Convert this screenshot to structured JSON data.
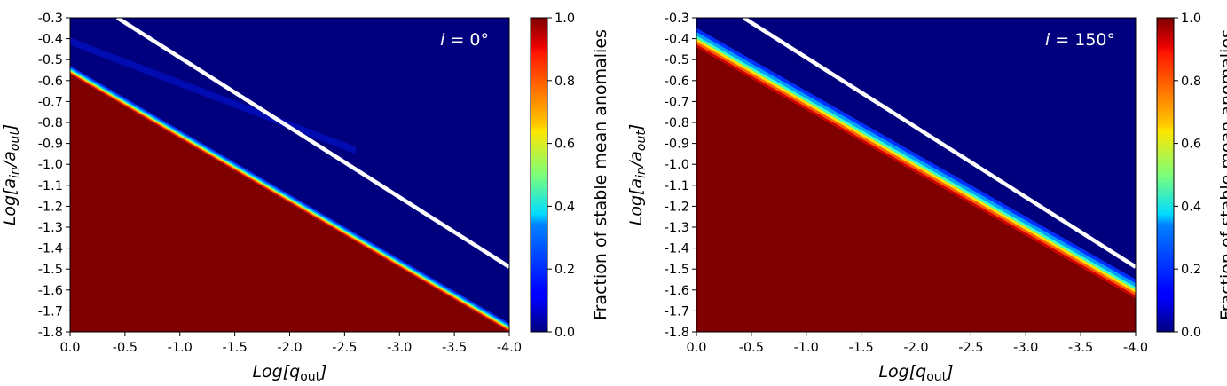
{
  "chart_data": [
    {
      "type": "heatmap",
      "panel_label": "i = 0°",
      "panel_var": "i",
      "panel_value": "0°",
      "xlabel_prefix": "Log[",
      "xlabel_var": "q",
      "xlabel_sub": "out",
      "xlabel_suffix": "]",
      "ylabel_prefix": "Log[",
      "ylabel_a1": "a",
      "ylabel_sub1": "in",
      "ylabel_mid": "/",
      "ylabel_a2": "a",
      "ylabel_sub2": "out",
      "ylabel_suffix": "]",
      "xlim": [
        0.0,
        -4.0
      ],
      "ylim": [
        -1.8,
        -0.3
      ],
      "x_ticks": [
        "0.0",
        "-0.5",
        "-1.0",
        "-1.5",
        "-2.0",
        "-2.5",
        "-3.0",
        "-3.5",
        "-4.0"
      ],
      "y_ticks": [
        "-0.3",
        "-0.4",
        "-0.5",
        "-0.6",
        "-0.7",
        "-0.8",
        "-0.9",
        "-1.0",
        "-1.1",
        "-1.2",
        "-1.3",
        "-1.4",
        "-1.5",
        "-1.6",
        "-1.7",
        "-1.8"
      ],
      "stability_boundary": [
        [
          0.0,
          -0.57
        ],
        [
          -4.0,
          -1.8
        ]
      ],
      "boundary_width": 0.04,
      "faint_band": [
        [
          0.0,
          -0.41
        ],
        [
          -0.3,
          -0.47
        ]
      ],
      "white_line": [
        [
          -0.43,
          -0.3
        ],
        [
          -4.0,
          -1.49
        ]
      ],
      "region_below_value": 1.0,
      "region_above_value": 0.0
    },
    {
      "type": "heatmap",
      "panel_label": "i = 150°",
      "panel_var": "i",
      "panel_value": "150°",
      "xlabel_prefix": "Log[",
      "xlabel_var": "q",
      "xlabel_sub": "out",
      "xlabel_suffix": "]",
      "ylabel_prefix": "Log[",
      "ylabel_a1": "a",
      "ylabel_sub1": "in",
      "ylabel_mid": "/",
      "ylabel_a2": "a",
      "ylabel_sub2": "out",
      "ylabel_suffix": "]",
      "xlim": [
        0.0,
        -4.0
      ],
      "ylim": [
        -1.8,
        -0.3
      ],
      "x_ticks": [
        "0.0",
        "-0.5",
        "-1.0",
        "-1.5",
        "-2.0",
        "-2.5",
        "-3.0",
        "-3.5",
        "-4.0"
      ],
      "y_ticks": [
        "-0.3",
        "-0.4",
        "-0.5",
        "-0.6",
        "-0.7",
        "-0.8",
        "-0.9",
        "-1.0",
        "-1.1",
        "-1.2",
        "-1.3",
        "-1.4",
        "-1.5",
        "-1.6",
        "-1.7",
        "-1.8"
      ],
      "stability_boundary": [
        [
          0.0,
          -0.44
        ],
        [
          -4.0,
          -1.64
        ]
      ],
      "boundary_width": 0.09,
      "white_line": [
        [
          -0.43,
          -0.3
        ],
        [
          -4.0,
          -1.49
        ]
      ],
      "region_below_value": 1.0,
      "region_above_value": 0.0
    }
  ],
  "colorbars": [
    {
      "label": "Fraction of stable mean anomalies",
      "range": [
        0.0,
        1.0
      ],
      "ticks": [
        "0.0",
        "0.2",
        "0.4",
        "0.6",
        "0.8",
        "1.0"
      ],
      "colormap": "jet"
    },
    {
      "label": "Fraction of stable mean anomalies",
      "range": [
        0.0,
        1.0
      ],
      "ticks": [
        "0.0",
        "0.2",
        "0.4",
        "0.6",
        "0.8",
        "1.0"
      ],
      "colormap": "jet"
    }
  ],
  "colors": {
    "unstable": "#00007f",
    "stable": "#7f0000",
    "line": "#ffffff"
  }
}
